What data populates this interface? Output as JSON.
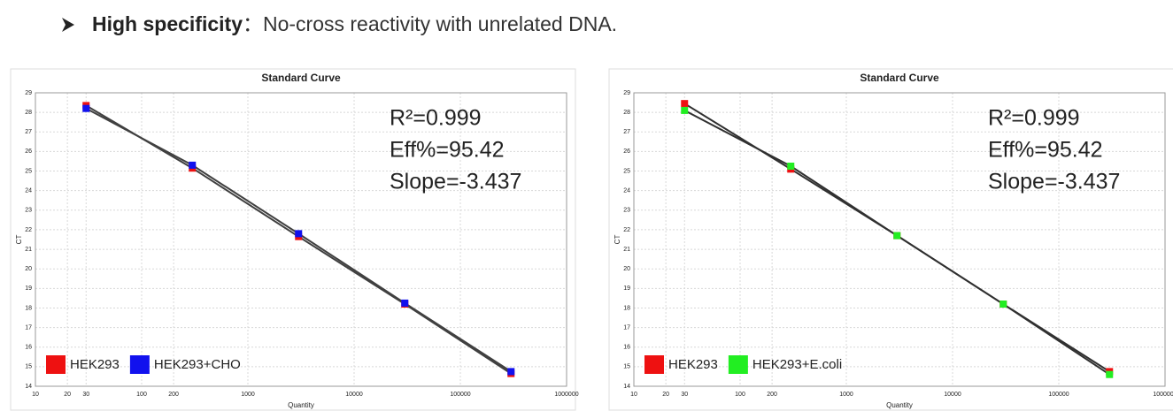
{
  "header": {
    "bold": "High specificity",
    "text": "：No-cross reactivity with unrelated DNA."
  },
  "chart_data": [
    {
      "type": "scatter",
      "title": "Standard Curve",
      "x_label": "Quantity",
      "y_label": "CT",
      "log_x": true,
      "grid": true,
      "legend": "lower left",
      "line_color": "#404040",
      "annotations": [
        "R²=0.999",
        "Eff%=95.42",
        "Slope=-3.437"
      ],
      "xlim": [
        10,
        1000000
      ],
      "xticks": [
        10,
        20,
        30,
        100,
        200,
        1000,
        10000,
        100000,
        1000000
      ],
      "ylim": [
        14,
        29
      ],
      "yticks": [
        14,
        15,
        16,
        17,
        18,
        19,
        20,
        21,
        22,
        23,
        24,
        25,
        26,
        27,
        28,
        29
      ],
      "x": [
        30,
        300,
        3000,
        30000,
        300000
      ],
      "series": [
        {
          "name": "HEK293",
          "color": "#ee1111",
          "values": [
            28.35,
            25.15,
            21.65,
            18.2,
            14.65
          ]
        },
        {
          "name": "HEK293+CHO",
          "color": "#1111ee",
          "values": [
            28.2,
            25.3,
            21.8,
            18.25,
            14.75
          ]
        }
      ]
    },
    {
      "type": "scatter",
      "title": "Standard Curve",
      "x_label": "Quantity",
      "y_label": "CT",
      "log_x": true,
      "grid": true,
      "legend": "lower left",
      "line_color": "#303030",
      "annotations": [
        "R²=0.999",
        "Eff%=95.42",
        "Slope=-3.437"
      ],
      "xlim": [
        10,
        1000000
      ],
      "xticks": [
        10,
        20,
        30,
        100,
        200,
        1000,
        10000,
        100000,
        1000000
      ],
      "ylim": [
        14,
        29
      ],
      "yticks": [
        14,
        15,
        16,
        17,
        18,
        19,
        20,
        21,
        22,
        23,
        24,
        25,
        26,
        27,
        28,
        29
      ],
      "x": [
        30,
        300,
        3000,
        30000,
        300000
      ],
      "series": [
        {
          "name": "HEK293",
          "color": "#ee1111",
          "values": [
            28.45,
            25.1,
            21.7,
            18.2,
            14.75
          ]
        },
        {
          "name": "HEK293+E.coli",
          "color": "#22ee22",
          "values": [
            28.1,
            25.25,
            21.7,
            18.2,
            14.6
          ]
        }
      ]
    }
  ]
}
